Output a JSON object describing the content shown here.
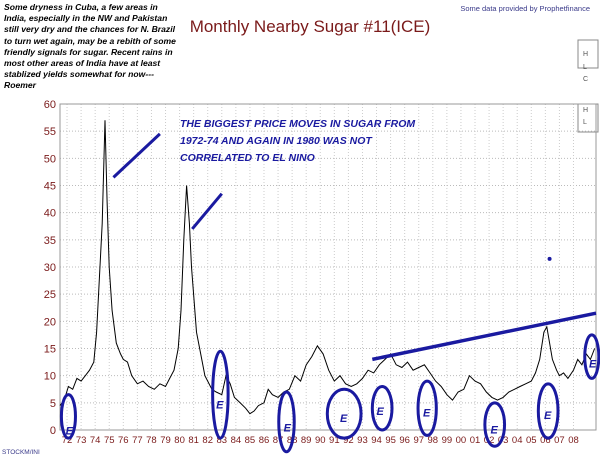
{
  "note": "Some dryness in Cuba, a few areas in India, especially in the NW and Pakistan still very dry and the chances for N. Brazil to turn wet again, may be a rebith of some friendly signals for sugar. Recent rains in most other areas of India have at least stablized yields somewhat for now---Roemer",
  "provider": "Some data provided by Prophetfinance",
  "source": "STOCKM/INI",
  "side_panel": {
    "labels": [
      "H",
      "L",
      "C",
      "H",
      "L"
    ]
  },
  "annotation": "THE BIGGEST PRICE MOVES IN SUGAR FROM 1972-74 AND AGAIN IN 1980 WAS NOT CORRELATED TO EL NINO",
  "marker_label": "E",
  "colors": {
    "title": "#7a1a1a",
    "price_line": "#000000",
    "el_nino_markup": "#1a1aa0",
    "trendline": "#1a1aa0"
  },
  "chart_data": {
    "type": "line",
    "title": "Monthly Nearby Sugar #11(ICE)",
    "xlabel": "",
    "ylabel": "",
    "xlim": [
      1971.5,
      2009.6
    ],
    "ylim": [
      0,
      60
    ],
    "y_ticks": [
      0,
      5,
      10,
      15,
      20,
      25,
      30,
      35,
      40,
      45,
      50,
      55,
      60
    ],
    "x_tick_labels": [
      "72",
      "73",
      "74",
      "75",
      "76",
      "77",
      "78",
      "79",
      "80",
      "81",
      "82",
      "83",
      "84",
      "85",
      "86",
      "87",
      "88",
      "89",
      "90",
      "91",
      "92",
      "93",
      "94",
      "95",
      "96",
      "97",
      "98",
      "99",
      "00",
      "01",
      "02",
      "03",
      "04",
      "05",
      "06",
      "07",
      "08"
    ],
    "grid": "dotted",
    "series": [
      {
        "x": [
          1971.5,
          1971.8,
          1972.1,
          1972.4,
          1972.7,
          1973.0,
          1973.3,
          1973.6,
          1973.9,
          1974.1,
          1974.3,
          1974.5,
          1974.7,
          1974.85,
          1975.0,
          1975.2,
          1975.5,
          1975.8,
          1976.0,
          1976.3,
          1976.6,
          1977.0,
          1977.4,
          1977.8,
          1978.2,
          1978.6,
          1979.0,
          1979.3,
          1979.6,
          1979.9,
          1980.1,
          1980.3,
          1980.5,
          1980.7,
          1980.85,
          1981.0,
          1981.2,
          1981.5,
          1981.8,
          1982.0,
          1982.3,
          1982.6,
          1983.0,
          1983.3,
          1983.6,
          1983.9,
          1984.3,
          1984.7,
          1985.0,
          1985.3,
          1985.6,
          1986.0,
          1986.3,
          1986.6,
          1987.0,
          1987.4,
          1987.8,
          1988.2,
          1988.6,
          1989.0,
          1989.4,
          1989.8,
          1990.2,
          1990.6,
          1991.0,
          1991.4,
          1991.8,
          1992.2,
          1992.6,
          1993.0,
          1993.4,
          1993.8,
          1994.2,
          1994.6,
          1995.0,
          1995.4,
          1995.8,
          1996.2,
          1996.6,
          1997.0,
          1997.4,
          1997.8,
          1998.2,
          1998.6,
          1999.0,
          1999.4,
          1999.8,
          2000.2,
          2000.6,
          2001.0,
          2001.4,
          2001.8,
          2002.2,
          2002.6,
          2003.0,
          2003.4,
          2003.8,
          2004.2,
          2004.6,
          2005.0,
          2005.3,
          2005.6,
          2005.9,
          2006.1,
          2006.3,
          2006.5,
          2006.8,
          2007.0,
          2007.3,
          2007.6,
          2008.0,
          2008.3,
          2008.6,
          2008.9,
          2009.2,
          2009.5
        ],
        "values": [
          4.5,
          5.5,
          8.0,
          7.5,
          9.5,
          9.0,
          10.0,
          11.0,
          12.5,
          18.0,
          28.0,
          38.0,
          57.0,
          42.0,
          30.0,
          22.0,
          16.0,
          14.0,
          13.0,
          12.5,
          10.0,
          8.5,
          9.0,
          8.0,
          7.5,
          8.5,
          8.0,
          9.5,
          11.0,
          15.0,
          22.0,
          35.0,
          45.0,
          38.0,
          30.0,
          25.0,
          18.0,
          14.0,
          10.0,
          9.0,
          7.5,
          7.0,
          6.5,
          10.0,
          8.5,
          6.0,
          5.0,
          4.0,
          3.0,
          3.5,
          4.5,
          5.0,
          7.5,
          6.5,
          6.0,
          7.0,
          7.5,
          10.0,
          9.0,
          12.0,
          13.5,
          15.5,
          14.0,
          11.0,
          9.0,
          10.0,
          8.5,
          8.0,
          8.5,
          9.5,
          11.0,
          10.5,
          12.0,
          13.0,
          14.0,
          12.0,
          11.5,
          12.5,
          11.0,
          11.5,
          12.0,
          10.5,
          9.0,
          8.0,
          6.5,
          5.5,
          7.0,
          7.5,
          10.0,
          9.0,
          8.5,
          7.0,
          6.0,
          5.5,
          6.0,
          7.0,
          7.5,
          8.0,
          8.5,
          9.0,
          10.5,
          13.0,
          18.0,
          19.0,
          16.0,
          13.0,
          11.0,
          10.0,
          10.5,
          9.5,
          11.0,
          13.0,
          12.0,
          14.0,
          13.0,
          15.0
        ]
      }
    ],
    "trendline": {
      "x": [
        1993.7,
        2009.6
      ],
      "values": [
        13.0,
        21.5
      ]
    },
    "el_nino_periods": [
      {
        "cx": 1972.1,
        "cy": 2.5,
        "rx": 0.5,
        "ry": 4.0,
        "label_x": 1971.9,
        "label_y": -0.8
      },
      {
        "cx": 1982.9,
        "cy": 6.5,
        "rx": 0.55,
        "ry": 8.0,
        "label_x": 1982.6,
        "label_y": 4.0
      },
      {
        "cx": 1987.6,
        "cy": 1.5,
        "rx": 0.55,
        "ry": 5.5,
        "label_x": 1987.4,
        "label_y": -0.3
      },
      {
        "cx": 1991.7,
        "cy": 3.0,
        "rx": 1.2,
        "ry": 4.5,
        "label_x": 1991.4,
        "label_y": 1.5
      },
      {
        "cx": 1994.4,
        "cy": 4.0,
        "rx": 0.7,
        "ry": 4.0,
        "label_x": 1994.0,
        "label_y": 2.8
      },
      {
        "cx": 1997.6,
        "cy": 4.0,
        "rx": 0.65,
        "ry": 5.0,
        "label_x": 1997.3,
        "label_y": 2.5
      },
      {
        "cx": 2002.4,
        "cy": 1.0,
        "rx": 0.7,
        "ry": 4.0,
        "label_x": 2002.1,
        "label_y": -0.6
      },
      {
        "cx": 2006.2,
        "cy": 3.5,
        "rx": 0.7,
        "ry": 5.0,
        "label_x": 2005.9,
        "label_y": 2.0
      },
      {
        "cx": 2009.3,
        "cy": 13.5,
        "rx": 0.5,
        "ry": 4.0,
        "label_x": 2009.1,
        "label_y": 11.5
      }
    ],
    "outlier_point": {
      "x": 2006.3,
      "y": 31.5
    },
    "callout_arrows": [
      {
        "x1": 1978.6,
        "y1": 54.5,
        "x2": 1975.3,
        "y2": 46.5
      },
      {
        "x1": 1983.0,
        "y1": 43.5,
        "x2": 1980.9,
        "y2": 37.0
      }
    ]
  }
}
